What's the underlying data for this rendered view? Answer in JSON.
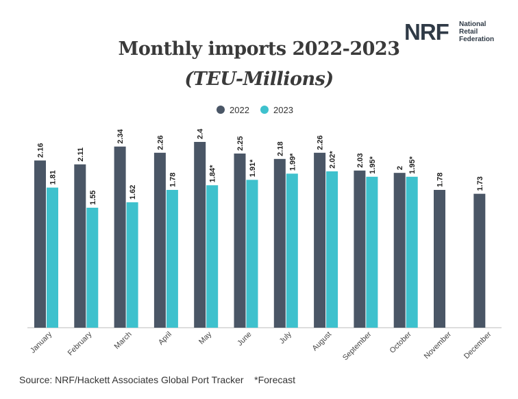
{
  "logo": {
    "mark": "NRF",
    "line1": "National",
    "line2": "Retail",
    "line3": "Federation"
  },
  "title": "Monthly imports 2022-2023",
  "subtitle": "(TEU-Millions)",
  "source": "Source: NRF/Hackett Associates Global Port Tracker",
  "footnote": "*Forecast",
  "colors": {
    "s2022": "#4a5666",
    "s2023": "#3ec1cd",
    "axis": "#bbbbbb",
    "label": "#222222"
  },
  "chart_data": {
    "type": "bar",
    "categories": [
      "January",
      "February",
      "March",
      "April",
      "May",
      "June",
      "July",
      "August",
      "September",
      "October",
      "November",
      "December"
    ],
    "series": [
      {
        "name": "2022",
        "values": [
          2.16,
          2.11,
          2.34,
          2.26,
          2.4,
          2.25,
          2.18,
          2.26,
          2.03,
          2.0,
          1.78,
          1.73
        ],
        "labels": [
          "2.16",
          "2.11",
          "2.34",
          "2.26",
          "2.4",
          "2.25",
          "2.18",
          "2.26",
          "2.03",
          "2",
          "1.78",
          "1.73"
        ]
      },
      {
        "name": "2023",
        "values": [
          1.81,
          1.55,
          1.62,
          1.78,
          1.84,
          1.91,
          1.99,
          2.02,
          1.95,
          1.95,
          null,
          null
        ],
        "labels": [
          "1.81",
          "1.55",
          "1.62",
          "1.78",
          "1.84*",
          "1.91*",
          "1.99*",
          "2.02*",
          "1.95*",
          "1.95*",
          null,
          null
        ]
      }
    ],
    "ylim": [
      0,
      2.4
    ],
    "legend_position": "top-center",
    "grid": false
  }
}
